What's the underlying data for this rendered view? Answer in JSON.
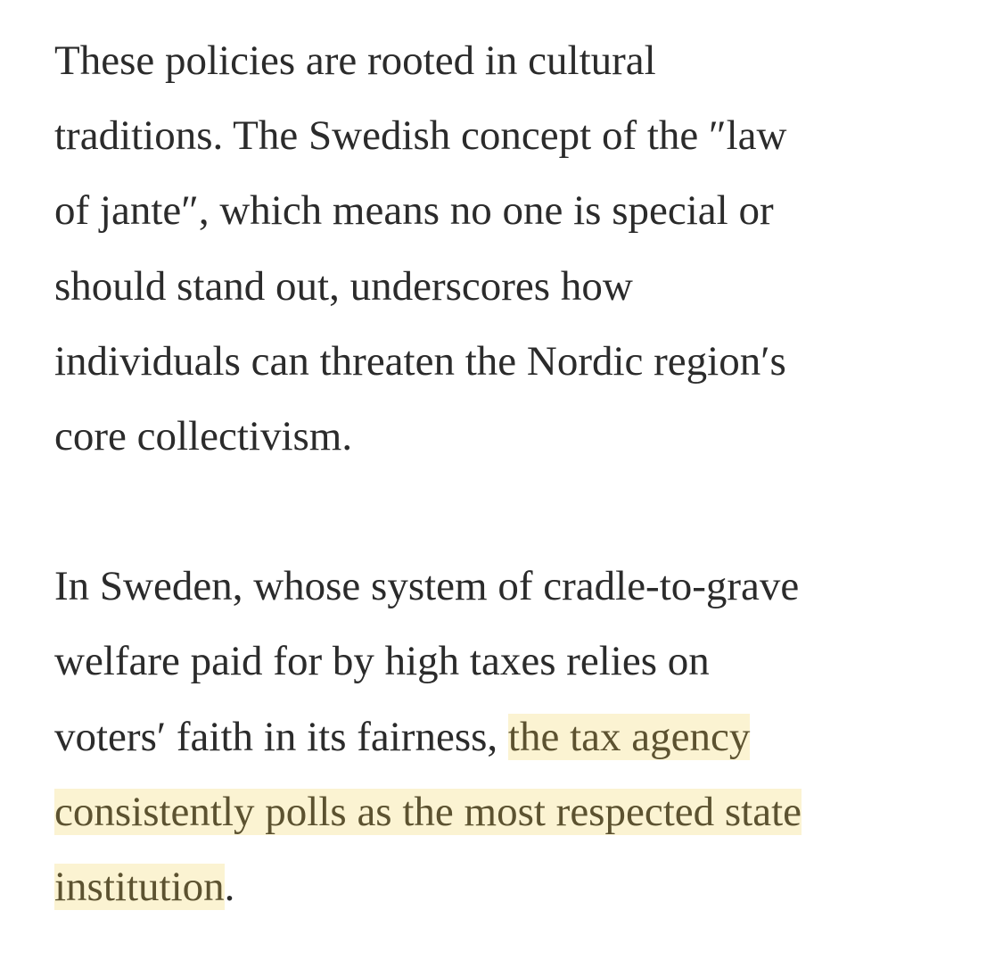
{
  "article": {
    "paragraph_1": [
      "These policies are rooted in cultural",
      "traditions. The Swedish concept of the ″law",
      "of jante″, which means no one is special or",
      "should stand out, underscores how",
      "individuals can threaten the Nordic region′s",
      "core collectivism."
    ],
    "paragraph_2": {
      "line_1": "In Sweden, whose system of cradle-to-grave",
      "line_2": "welfare paid for by high taxes relies on",
      "line_3_plain": "voters′ faith in its fairness, ",
      "highlight_part_1": "the tax agency",
      "highlight_part_2": "consistently polls as the most respected state",
      "highlight_part_3": "institution",
      "line_5_end": "."
    },
    "highlight_color": "#fbf3d2",
    "text_color": "#2b2b2b"
  }
}
